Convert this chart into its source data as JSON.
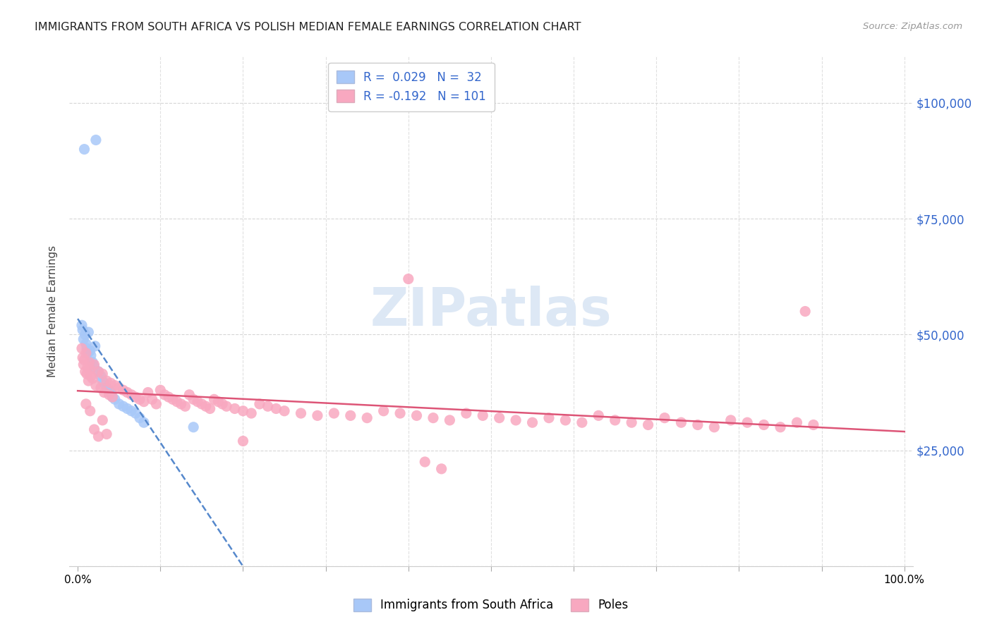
{
  "title": "IMMIGRANTS FROM SOUTH AFRICA VS POLISH MEDIAN FEMALE EARNINGS CORRELATION CHART",
  "source": "Source: ZipAtlas.com",
  "ylabel": "Median Female Earnings",
  "color_blue": "#a8c8f8",
  "color_pink": "#f8a8c0",
  "color_blue_text": "#3366cc",
  "color_pink_text": "#cc3366",
  "trend_blue_color": "#5588cc",
  "trend_pink_color": "#dd5577",
  "watermark_color": "#dde8f5",
  "R_blue": 0.029,
  "N_blue": 32,
  "R_pink": -0.192,
  "N_pink": 101,
  "ylim": [
    0,
    110000
  ],
  "xlim": [
    -1,
    101
  ],
  "background_color": "#ffffff",
  "grid_color": "#cccccc",
  "blue_x": [
    0.8,
    2.2,
    0.5,
    0.6,
    0.7,
    0.9,
    1.0,
    1.1,
    1.2,
    1.3,
    1.5,
    1.6,
    1.8,
    2.0,
    2.1,
    2.5,
    2.8,
    3.0,
    3.2,
    3.5,
    3.8,
    4.0,
    4.2,
    4.5,
    5.0,
    5.5,
    6.0,
    6.5,
    7.0,
    7.5,
    8.0,
    14.0
  ],
  "blue_y": [
    90000,
    92000,
    52000,
    51000,
    49000,
    50000,
    48000,
    47000,
    46000,
    50500,
    46500,
    45500,
    44000,
    43000,
    47500,
    42000,
    41000,
    40000,
    39500,
    38500,
    38000,
    37500,
    36500,
    36000,
    35000,
    34500,
    34000,
    33500,
    33000,
    32000,
    31000,
    30000
  ],
  "pink_x": [
    0.5,
    0.6,
    0.7,
    0.8,
    0.9,
    1.0,
    1.1,
    1.2,
    1.3,
    1.4,
    1.5,
    1.6,
    1.8,
    2.0,
    2.2,
    2.5,
    2.8,
    3.0,
    3.2,
    3.5,
    3.8,
    4.0,
    4.2,
    4.5,
    5.0,
    5.5,
    6.0,
    6.5,
    7.0,
    7.5,
    8.0,
    8.5,
    9.0,
    9.5,
    10.0,
    10.5,
    11.0,
    11.5,
    12.0,
    12.5,
    13.0,
    13.5,
    14.0,
    14.5,
    15.0,
    15.5,
    16.0,
    16.5,
    17.0,
    17.5,
    18.0,
    19.0,
    20.0,
    21.0,
    22.0,
    23.0,
    24.0,
    25.0,
    27.0,
    29.0,
    31.0,
    33.0,
    35.0,
    37.0,
    39.0,
    41.0,
    43.0,
    45.0,
    47.0,
    49.0,
    51.0,
    53.0,
    55.0,
    57.0,
    59.0,
    61.0,
    63.0,
    65.0,
    67.0,
    69.0,
    71.0,
    73.0,
    75.0,
    77.0,
    79.0,
    81.0,
    83.0,
    85.0,
    87.0,
    89.0,
    40.0,
    88.0,
    1.0,
    1.5,
    2.0,
    2.5,
    3.0,
    3.5,
    20.0,
    42.0,
    44.0
  ],
  "pink_y": [
    47000,
    45000,
    43500,
    44500,
    42000,
    46000,
    41500,
    43000,
    40000,
    44000,
    42500,
    41000,
    40500,
    43500,
    39000,
    42000,
    38500,
    41500,
    37500,
    40000,
    37000,
    39500,
    36500,
    39000,
    38500,
    38000,
    37500,
    37000,
    36500,
    36000,
    35500,
    37500,
    36000,
    35000,
    38000,
    37000,
    36500,
    36000,
    35500,
    35000,
    34500,
    37000,
    36000,
    35500,
    35000,
    34500,
    34000,
    36000,
    35500,
    35000,
    34500,
    34000,
    33500,
    33000,
    35000,
    34500,
    34000,
    33500,
    33000,
    32500,
    33000,
    32500,
    32000,
    33500,
    33000,
    32500,
    32000,
    31500,
    33000,
    32500,
    32000,
    31500,
    31000,
    32000,
    31500,
    31000,
    32500,
    31500,
    31000,
    30500,
    32000,
    31000,
    30500,
    30000,
    31500,
    31000,
    30500,
    30000,
    31000,
    30500,
    62000,
    55000,
    35000,
    33500,
    29500,
    28000,
    31500,
    28500,
    27000,
    22500,
    21000
  ]
}
